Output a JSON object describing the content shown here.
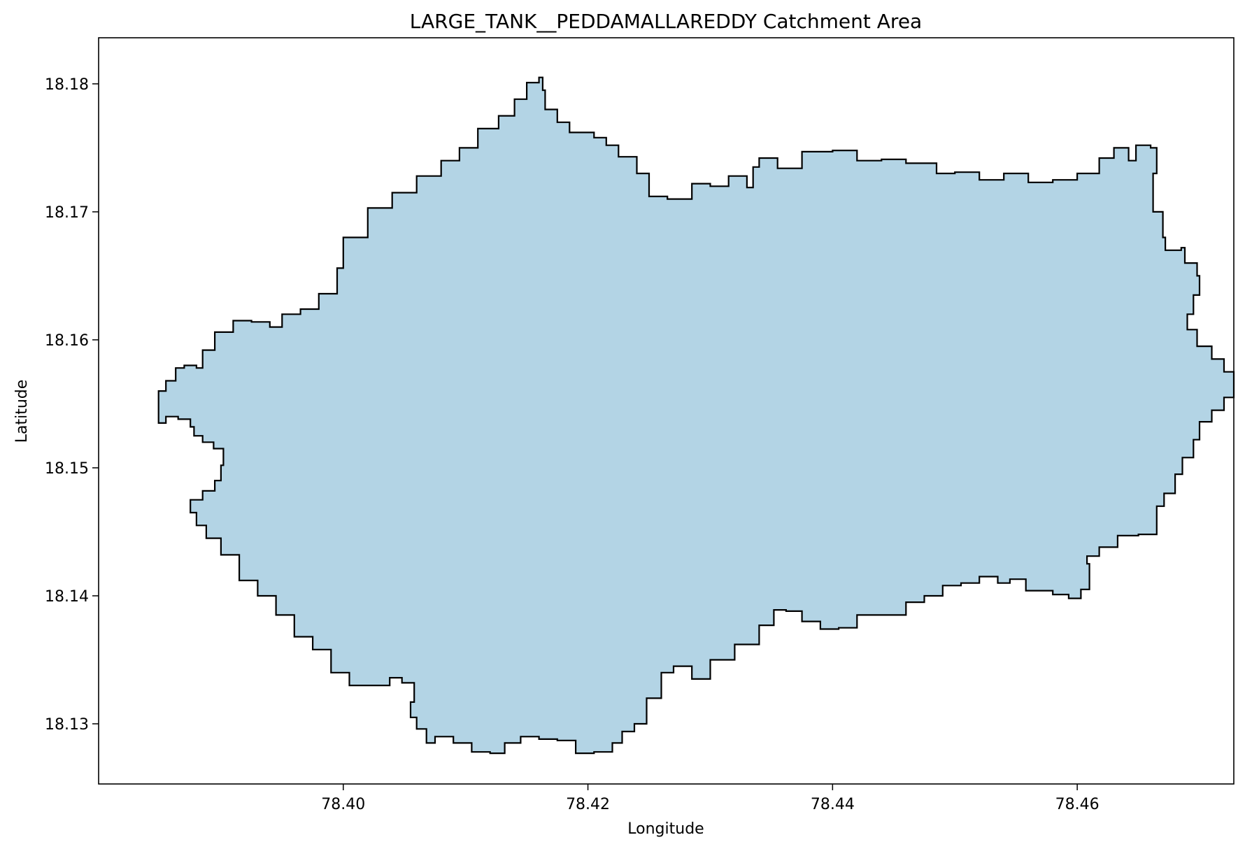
{
  "chart_data": {
    "type": "map",
    "title": "LARGE_TANK__PEDDAMALLAREDDY Catchment Area",
    "xlabel": "Longitude",
    "ylabel": "Latitude",
    "xlim": [
      78.38,
      78.4728
    ],
    "ylim": [
      18.1253,
      18.1836
    ],
    "x_ticks": [
      {
        "value": 78.4,
        "label": "78.40"
      },
      {
        "value": 78.42,
        "label": "78.42"
      },
      {
        "value": 78.44,
        "label": "78.44"
      },
      {
        "value": 78.46,
        "label": "78.46"
      }
    ],
    "y_ticks": [
      {
        "value": 18.13,
        "label": "18.13"
      },
      {
        "value": 18.14,
        "label": "18.14"
      },
      {
        "value": 18.15,
        "label": "18.15"
      },
      {
        "value": 18.16,
        "label": "18.16"
      },
      {
        "value": 18.17,
        "label": "18.17"
      },
      {
        "value": 18.18,
        "label": "18.18"
      }
    ],
    "grid": false,
    "series": [
      {
        "fill_color": "#b3d4e5",
        "edge_color": "#000000",
        "polygon": [
          [
            78.3849,
            18.156
          ],
          [
            78.3855,
            18.1568
          ],
          [
            78.3863,
            18.1578
          ],
          [
            78.387,
            18.158
          ],
          [
            78.388,
            18.1578
          ],
          [
            78.3885,
            18.1592
          ],
          [
            78.3895,
            18.1606
          ],
          [
            78.391,
            18.1615
          ],
          [
            78.3925,
            18.1614
          ],
          [
            78.394,
            18.161
          ],
          [
            78.395,
            18.162
          ],
          [
            78.3965,
            18.1624
          ],
          [
            78.398,
            18.1636
          ],
          [
            78.3995,
            18.1656
          ],
          [
            78.4,
            18.168
          ],
          [
            78.402,
            18.1703
          ],
          [
            78.404,
            18.1715
          ],
          [
            78.406,
            18.1728
          ],
          [
            78.408,
            18.174
          ],
          [
            78.4095,
            18.175
          ],
          [
            78.411,
            18.1765
          ],
          [
            78.4127,
            18.1775
          ],
          [
            78.414,
            18.1788
          ],
          [
            78.415,
            18.1801
          ],
          [
            78.416,
            18.1805
          ],
          [
            78.4163,
            18.1795
          ],
          [
            78.4165,
            18.178
          ],
          [
            78.4175,
            18.177
          ],
          [
            78.4185,
            18.1762
          ],
          [
            78.4205,
            18.1758
          ],
          [
            78.4215,
            18.1752
          ],
          [
            78.4225,
            18.1743
          ],
          [
            78.424,
            18.173
          ],
          [
            78.425,
            18.1712
          ],
          [
            78.4265,
            18.171
          ],
          [
            78.4285,
            18.1722
          ],
          [
            78.43,
            18.172
          ],
          [
            78.4315,
            18.1728
          ],
          [
            78.433,
            18.1719
          ],
          [
            78.4335,
            18.1735
          ],
          [
            78.434,
            18.1742
          ],
          [
            78.4355,
            18.1734
          ],
          [
            78.4375,
            18.1747
          ],
          [
            78.44,
            18.1748
          ],
          [
            78.442,
            18.174
          ],
          [
            78.444,
            18.1741
          ],
          [
            78.446,
            18.1738
          ],
          [
            78.4485,
            18.173
          ],
          [
            78.45,
            18.1731
          ],
          [
            78.452,
            18.1725
          ],
          [
            78.454,
            18.173
          ],
          [
            78.456,
            18.1723
          ],
          [
            78.458,
            18.1725
          ],
          [
            78.46,
            18.173
          ],
          [
            78.4618,
            18.1742
          ],
          [
            78.463,
            18.175
          ],
          [
            78.4642,
            18.174
          ],
          [
            78.4648,
            18.1752
          ],
          [
            78.466,
            18.175
          ],
          [
            78.4665,
            18.173
          ],
          [
            78.4662,
            18.1715
          ],
          [
            78.4662,
            18.17
          ],
          [
            78.467,
            18.168
          ],
          [
            78.4672,
            18.167
          ],
          [
            78.4685,
            18.1672
          ],
          [
            78.4688,
            18.166
          ],
          [
            78.4698,
            18.165
          ],
          [
            78.47,
            18.1635
          ],
          [
            78.4695,
            18.162
          ],
          [
            78.469,
            18.1608
          ],
          [
            78.4698,
            18.1595
          ],
          [
            78.471,
            18.1585
          ],
          [
            78.472,
            18.1575
          ],
          [
            78.4728,
            18.1565
          ],
          [
            78.4728,
            18.1555
          ],
          [
            78.472,
            18.1545
          ],
          [
            78.471,
            18.1536
          ],
          [
            78.47,
            18.1522
          ],
          [
            78.4695,
            18.1508
          ],
          [
            78.4686,
            18.1495
          ],
          [
            78.468,
            18.148
          ],
          [
            78.4671,
            18.147
          ],
          [
            78.4665,
            18.1465
          ],
          [
            78.4665,
            18.1455
          ],
          [
            78.4665,
            18.1448
          ],
          [
            78.465,
            18.1447
          ],
          [
            78.4633,
            18.1438
          ],
          [
            78.4618,
            18.1431
          ],
          [
            78.4608,
            18.1425
          ],
          [
            78.461,
            18.1415
          ],
          [
            78.461,
            18.1405
          ],
          [
            78.4603,
            18.1398
          ],
          [
            78.4593,
            18.1401
          ],
          [
            78.458,
            18.1404
          ],
          [
            78.4568,
            18.1404
          ],
          [
            78.4558,
            18.1413
          ],
          [
            78.4545,
            18.141
          ],
          [
            78.4535,
            18.1415
          ],
          [
            78.452,
            18.141
          ],
          [
            78.4505,
            18.1408
          ],
          [
            78.449,
            18.14
          ],
          [
            78.4475,
            18.1395
          ],
          [
            78.446,
            18.1385
          ],
          [
            78.444,
            18.1385
          ],
          [
            78.442,
            18.1375
          ],
          [
            78.4405,
            18.1374
          ],
          [
            78.439,
            18.138
          ],
          [
            78.4375,
            18.1388
          ],
          [
            78.4362,
            18.1389
          ],
          [
            78.4352,
            18.1377
          ],
          [
            78.434,
            18.1362
          ],
          [
            78.432,
            18.135
          ],
          [
            78.43,
            18.1335
          ],
          [
            78.4285,
            18.1345
          ],
          [
            78.427,
            18.134
          ],
          [
            78.426,
            18.132
          ],
          [
            78.4248,
            18.13
          ],
          [
            78.4238,
            18.1294
          ],
          [
            78.4228,
            18.1285
          ],
          [
            78.422,
            18.1278
          ],
          [
            78.4205,
            18.1277
          ],
          [
            78.419,
            18.1287
          ],
          [
            78.4175,
            18.1288
          ],
          [
            78.416,
            18.129
          ],
          [
            78.4145,
            18.1285
          ],
          [
            78.4132,
            18.1277
          ],
          [
            78.412,
            18.1278
          ],
          [
            78.4105,
            18.1285
          ],
          [
            78.409,
            18.129
          ],
          [
            78.4075,
            18.1285
          ],
          [
            78.4068,
            18.1296
          ],
          [
            78.406,
            18.1305
          ],
          [
            78.4055,
            18.1317
          ],
          [
            78.4058,
            18.1332
          ],
          [
            78.4048,
            18.1336
          ],
          [
            78.4038,
            18.133
          ],
          [
            78.402,
            18.133
          ],
          [
            78.4005,
            18.134
          ],
          [
            78.399,
            18.1358
          ],
          [
            78.3975,
            18.1368
          ],
          [
            78.396,
            18.1385
          ],
          [
            78.3945,
            18.14
          ],
          [
            78.393,
            18.1412
          ],
          [
            78.3915,
            18.1432
          ],
          [
            78.39,
            18.1445
          ],
          [
            78.3888,
            18.1455
          ],
          [
            78.388,
            18.1465
          ],
          [
            78.3875,
            18.1475
          ],
          [
            78.3885,
            18.1482
          ],
          [
            78.3895,
            18.149
          ],
          [
            78.39,
            18.1502
          ],
          [
            78.3902,
            18.1515
          ],
          [
            78.3894,
            18.152
          ],
          [
            78.3885,
            18.1525
          ],
          [
            78.3878,
            18.1532
          ],
          [
            78.3875,
            18.1538
          ],
          [
            78.3865,
            18.154
          ],
          [
            78.3855,
            18.1535
          ],
          [
            78.3849,
            18.1545
          ]
        ]
      }
    ]
  }
}
